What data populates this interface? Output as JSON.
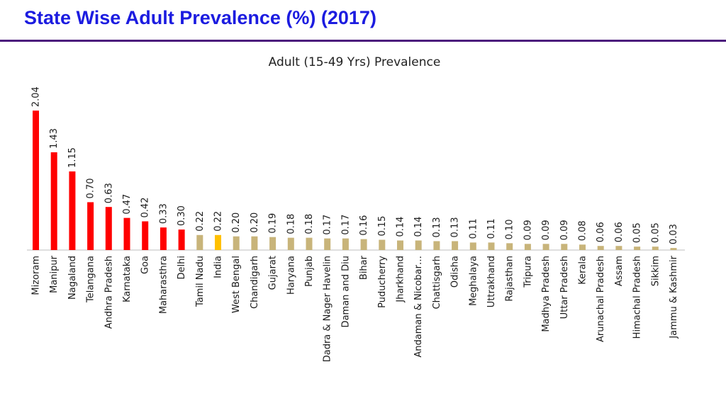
{
  "page": {
    "title": "State Wise Adult Prevalence (%) (2017)"
  },
  "colors": {
    "title": "#1c1ce0",
    "rule": "#4b1a7d",
    "high": "#ff0000",
    "low": "#c8b47a",
    "india": "#ffc000",
    "axis": "#bfbfbf"
  },
  "chart_data": {
    "type": "bar",
    "title": "Adult (15-49 Yrs) Prevalence",
    "xlabel": "",
    "ylabel": "",
    "ylim": [
      0,
      2.1
    ],
    "grid": false,
    "legend": "none",
    "categories": [
      "Mizoram",
      "Manipur",
      "Nagaland",
      "Telangana",
      "Andhra Pradesh",
      "Karnataka",
      "Goa",
      "Maharasthra",
      "Delhi",
      "Tamil Nadu",
      "India",
      "West Bengal",
      "Chandigarh",
      "Gujarat",
      "Haryana",
      "Punjab",
      "Dadra & Nager Havelin",
      "Daman and Diu",
      "Bihar",
      "Puducherry",
      "Jharkhand",
      "Andaman & Nicobar…",
      "Chattisgarh",
      "Odisha",
      "Meghalaya",
      "Uttrakhand",
      "Rajasthan",
      "Tripura",
      "Madhya Pradesh",
      "Uttar Pradesh",
      "Kerala",
      "Arunachal Pradesh",
      "Assam",
      "Himachal Pradesh",
      "Sikkim",
      "Jammu & Kashmir"
    ],
    "values": [
      2.04,
      1.43,
      1.15,
      0.7,
      0.63,
      0.47,
      0.42,
      0.33,
      0.3,
      0.22,
      0.22,
      0.2,
      0.2,
      0.19,
      0.18,
      0.18,
      0.17,
      0.17,
      0.16,
      0.15,
      0.14,
      0.14,
      0.13,
      0.13,
      0.11,
      0.11,
      0.1,
      0.09,
      0.09,
      0.09,
      0.08,
      0.06,
      0.06,
      0.05,
      0.05,
      0.03
    ],
    "value_labels": [
      "2.04",
      "1.43",
      "1.15",
      "0.70",
      "0.63",
      "0.47",
      "0.42",
      "0.33",
      "0.30",
      "0.22",
      "0.22",
      "0.20",
      "0.20",
      "0.19",
      "0.18",
      "0.18",
      "0.17",
      "0.17",
      "0.16",
      "0.15",
      "0.14",
      "0.14",
      "0.13",
      "0.13",
      "0.11",
      "0.11",
      "0.10",
      "0.09",
      "0.09",
      "0.09",
      "0.08",
      "0.06",
      "0.06",
      "0.05",
      "0.05",
      "0.03"
    ],
    "bar_colors": [
      "high",
      "high",
      "high",
      "high",
      "high",
      "high",
      "high",
      "high",
      "high",
      "low",
      "india",
      "low",
      "low",
      "low",
      "low",
      "low",
      "low",
      "low",
      "low",
      "low",
      "low",
      "low",
      "low",
      "low",
      "low",
      "low",
      "low",
      "low",
      "low",
      "low",
      "low",
      "low",
      "low",
      "low",
      "low",
      "low"
    ]
  }
}
